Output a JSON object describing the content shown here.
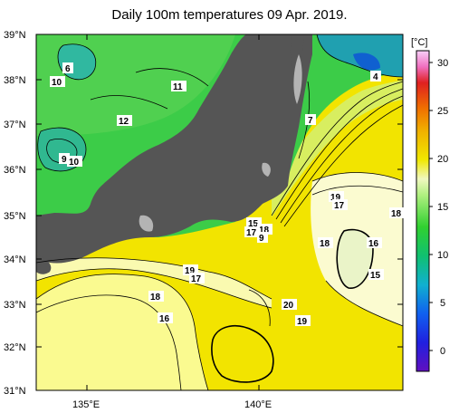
{
  "title": "Daily 100m temperatures 09 Apr. 2019.",
  "lat_labels": [
    "39°N",
    "38°N",
    "37°N",
    "36°N",
    "35°N",
    "34°N",
    "33°N",
    "32°N",
    "31°N"
  ],
  "lon_labels": [
    "135°E",
    "140°E"
  ],
  "colorbar": {
    "unit": "[°C]",
    "ticks": [
      "30",
      "25",
      "20",
      "15",
      "10",
      "5",
      "0"
    ]
  },
  "contour_labels": [
    "6",
    "10",
    "11",
    "4",
    "12",
    "7",
    "9",
    "10",
    "19",
    "17",
    "18",
    "15",
    "18",
    "16",
    "17",
    "9",
    "18",
    "19",
    "17",
    "18",
    "15",
    "16",
    "20",
    "19"
  ],
  "colors": {
    "land": "#555555",
    "no_data": "#b4b4b4",
    "warm": "#f0e000",
    "pale": "#ffffb0",
    "cool_green": "#20d040",
    "cold_cyan": "#20b0b0"
  }
}
